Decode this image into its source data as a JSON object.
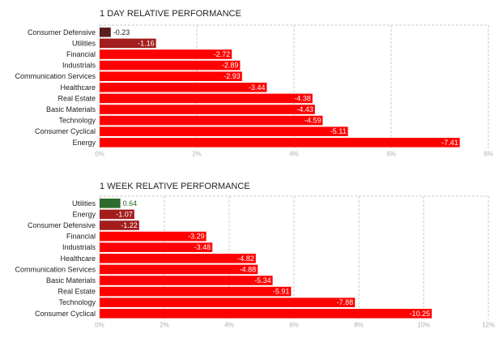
{
  "colors": {
    "negative": "#ff0000",
    "negative_small": "#a31d1d",
    "negative_tiny": "#5b1f1f",
    "positive": "#2e6b2e",
    "label_on_bar": "#ffffff",
    "label_outside": "#222222",
    "label_positive": "#1f6b1f"
  },
  "chart_data": [
    {
      "type": "bar",
      "orientation": "horizontal",
      "title": "1 DAY RELATIVE PERFORMANCE",
      "categories": [
        "Consumer Defensive",
        "Utilities",
        "Financial",
        "Industrials",
        "Communication Services",
        "Healthcare",
        "Real Estate",
        "Basic Materials",
        "Technology",
        "Consumer Cyclical",
        "Energy"
      ],
      "values": [
        -0.23,
        -1.16,
        -2.72,
        -2.89,
        -2.93,
        -3.44,
        -4.38,
        -4.43,
        -4.59,
        -5.11,
        -7.41
      ],
      "value_labels": [
        "-0.23",
        "-1.16",
        "-2.72",
        "-2.89",
        "-2.93",
        "-3.44",
        "-4.38",
        "-4.43",
        "-4.59",
        "-5.11",
        "-7.41"
      ],
      "xlim": [
        0,
        8
      ],
      "xticks": [
        "0%",
        "2%",
        "4%",
        "6%",
        "8%"
      ],
      "grid": true,
      "magnitude_axis": true
    },
    {
      "type": "bar",
      "orientation": "horizontal",
      "title": "1 WEEK RELATIVE PERFORMANCE",
      "categories": [
        "Utilities",
        "Energy",
        "Consumer Defensive",
        "Financial",
        "Industrials",
        "Healthcare",
        "Communication Services",
        "Basic Materials",
        "Real Estate",
        "Technology",
        "Consumer Cyclical"
      ],
      "values": [
        0.64,
        -1.07,
        -1.22,
        -3.29,
        -3.48,
        -4.82,
        -4.88,
        -5.34,
        -5.91,
        -7.88,
        -10.25
      ],
      "value_labels": [
        "0.64",
        "-1.07",
        "-1.22",
        "-3.29",
        "-3.48",
        "-4.82",
        "-4.88",
        "-5.34",
        "-5.91",
        "-7.88",
        "-10.25"
      ],
      "xlim": [
        0,
        12
      ],
      "xticks": [
        "0%",
        "2%",
        "4%",
        "6%",
        "8%",
        "10%",
        "12%"
      ],
      "grid": true,
      "magnitude_axis": true
    }
  ]
}
